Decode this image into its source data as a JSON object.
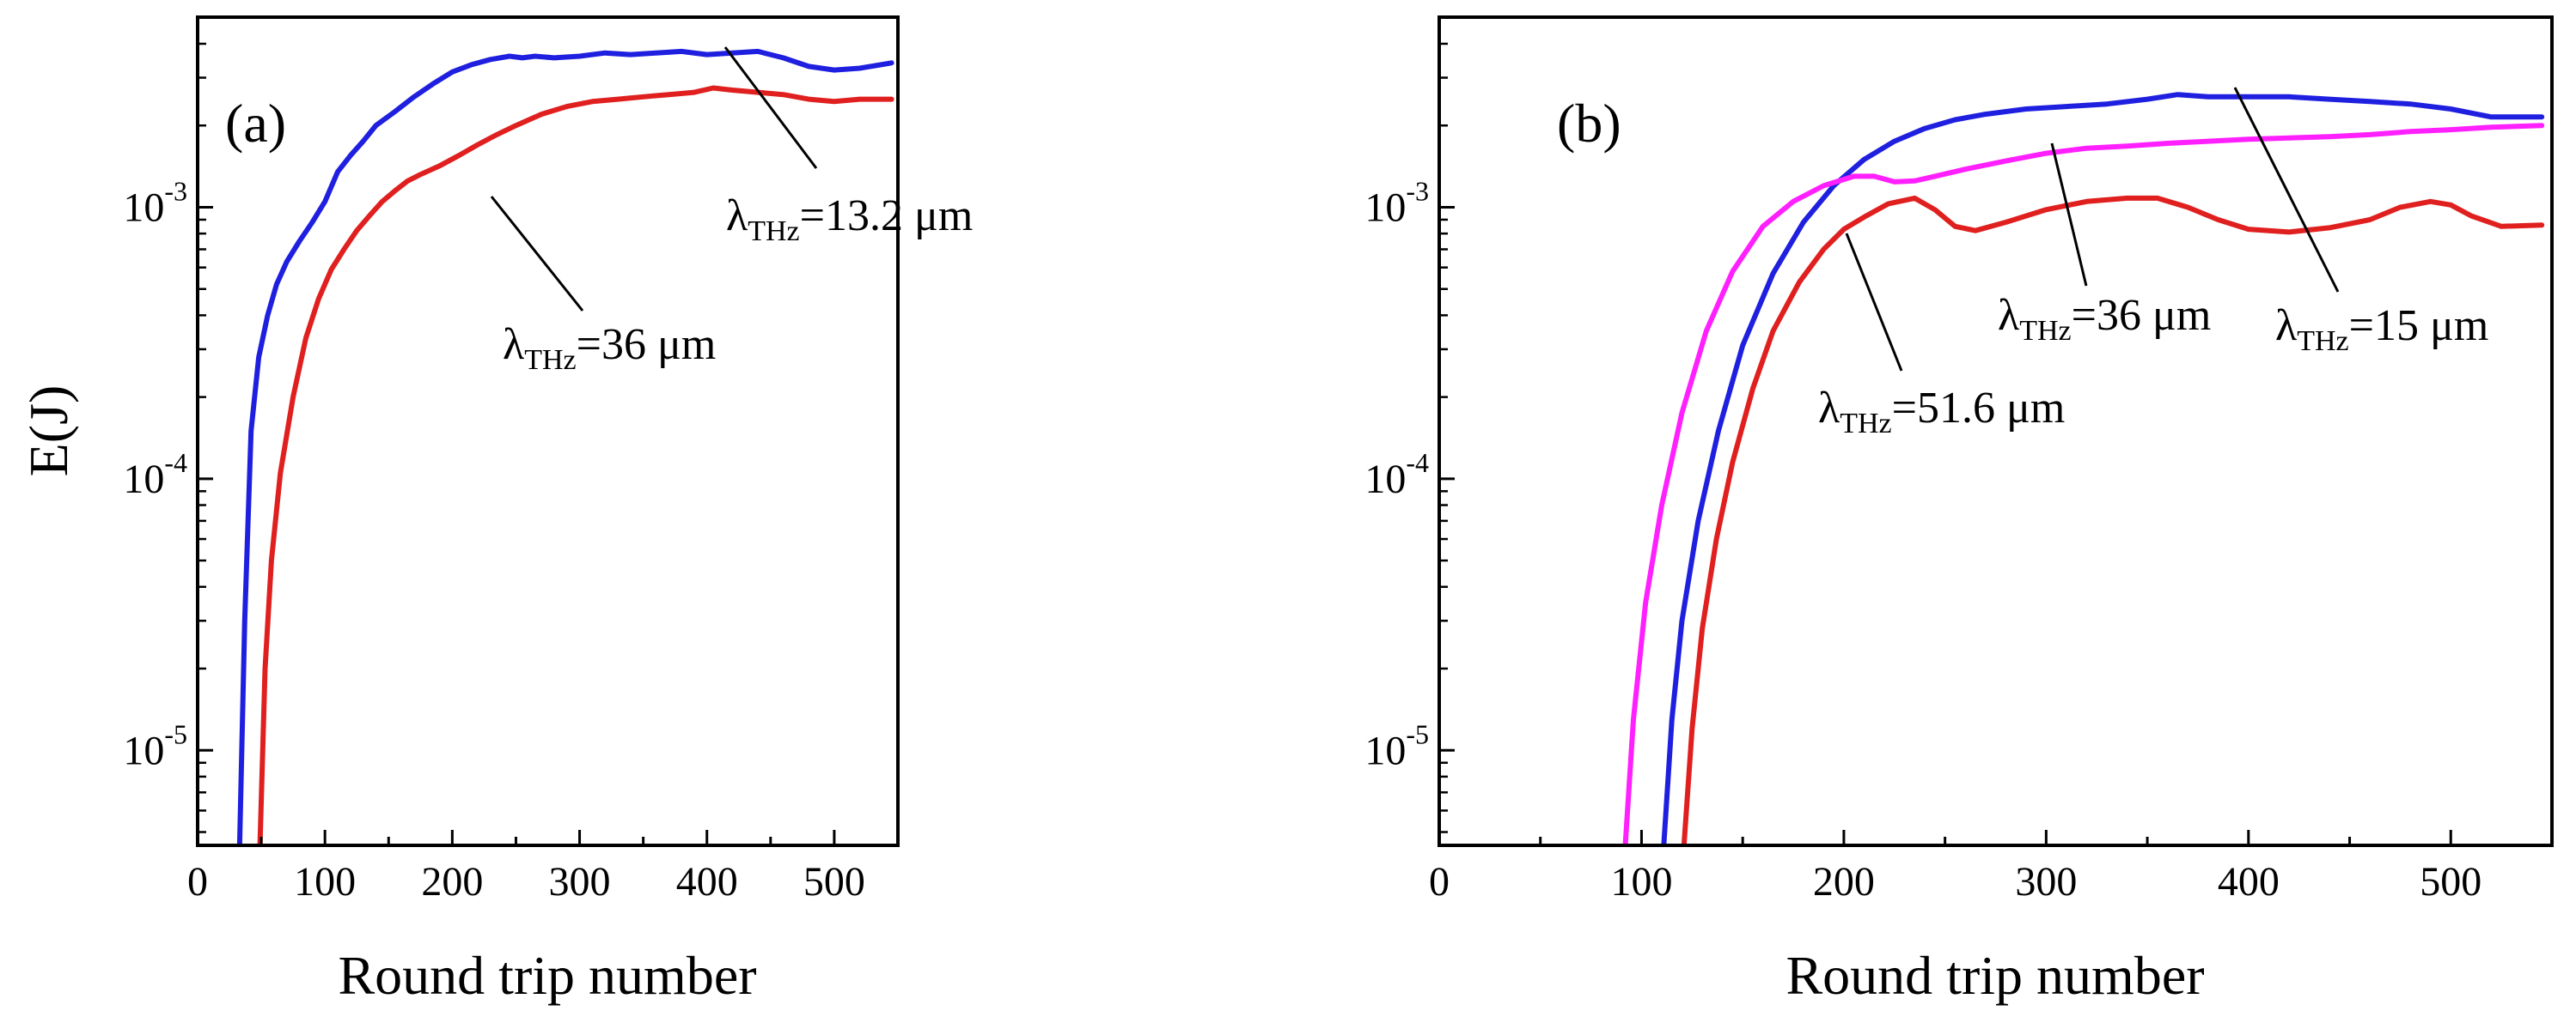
{
  "chart_data": [
    {
      "type": "line",
      "panel_label": "(a)",
      "xlabel": "Round trip number",
      "ylabel": "E(J)",
      "xlim": [
        0,
        550
      ],
      "ylim_log10": [
        -5.35,
        -2.3
      ],
      "x_ticks": [
        "0",
        "100",
        "200",
        "300",
        "400",
        "500"
      ],
      "y_ticks": [
        {
          "base": "10",
          "exp": "-5"
        },
        {
          "base": "10",
          "exp": "-4"
        },
        {
          "base": "10",
          "exp": "-3"
        }
      ],
      "series": [
        {
          "name": "λTHz=13.2 μm",
          "color": "#1f1fe0",
          "points": [
            [
              33,
              4.5e-06
            ],
            [
              37,
              3e-05
            ],
            [
              42,
              0.00015
            ],
            [
              48,
              0.00028
            ],
            [
              55,
              0.0004
            ],
            [
              62,
              0.00052
            ],
            [
              70,
              0.00063
            ],
            [
              80,
              0.00075
            ],
            [
              90,
              0.00088
            ],
            [
              100,
              0.00105
            ],
            [
              110,
              0.00135
            ],
            [
              120,
              0.00155
            ],
            [
              130,
              0.00175
            ],
            [
              140,
              0.002
            ],
            [
              155,
              0.00225
            ],
            [
              170,
              0.00255
            ],
            [
              185,
              0.00285
            ],
            [
              200,
              0.00315
            ],
            [
              215,
              0.00335
            ],
            [
              230,
              0.0035
            ],
            [
              245,
              0.0036
            ],
            [
              255,
              0.00355
            ],
            [
              265,
              0.0036
            ],
            [
              280,
              0.00355
            ],
            [
              300,
              0.0036
            ],
            [
              320,
              0.0037
            ],
            [
              340,
              0.00365
            ],
            [
              360,
              0.0037
            ],
            [
              380,
              0.00375
            ],
            [
              400,
              0.00365
            ],
            [
              420,
              0.0037
            ],
            [
              440,
              0.00375
            ],
            [
              460,
              0.00355
            ],
            [
              480,
              0.0033
            ],
            [
              500,
              0.0032
            ],
            [
              520,
              0.00325
            ],
            [
              545,
              0.0034
            ]
          ]
        },
        {
          "name": "λTHz=36 μm",
          "color": "#e01f1f",
          "points": [
            [
              49,
              4.5e-06
            ],
            [
              53,
              2e-05
            ],
            [
              58,
              5e-05
            ],
            [
              65,
              0.000105
            ],
            [
              75,
              0.0002
            ],
            [
              85,
              0.00033
            ],
            [
              95,
              0.00046
            ],
            [
              105,
              0.00059
            ],
            [
              115,
              0.0007
            ],
            [
              125,
              0.00082
            ],
            [
              135,
              0.00093
            ],
            [
              145,
              0.00105
            ],
            [
              155,
              0.00115
            ],
            [
              165,
              0.00125
            ],
            [
              175,
              0.00132
            ],
            [
              190,
              0.00142
            ],
            [
              205,
              0.00155
            ],
            [
              220,
              0.0017
            ],
            [
              235,
              0.00185
            ],
            [
              250,
              0.002
            ],
            [
              270,
              0.0022
            ],
            [
              290,
              0.00235
            ],
            [
              310,
              0.00245
            ],
            [
              330,
              0.0025
            ],
            [
              350,
              0.00255
            ],
            [
              370,
              0.0026
            ],
            [
              390,
              0.00265
            ],
            [
              405,
              0.00275
            ],
            [
              420,
              0.0027
            ],
            [
              440,
              0.00265
            ],
            [
              460,
              0.0026
            ],
            [
              480,
              0.0025
            ],
            [
              500,
              0.00245
            ],
            [
              520,
              0.0025
            ],
            [
              545,
              0.0025
            ]
          ]
        }
      ],
      "annotations": [
        {
          "base": "λ",
          "sub": "THz",
          "rest": "=13.2 μm",
          "target": "λTHz=13.2 μm"
        },
        {
          "base": "λ",
          "sub": "THz",
          "rest": "=36 μm",
          "target": "λTHz=36 μm"
        }
      ]
    },
    {
      "type": "line",
      "panel_label": "(b)",
      "xlabel": "Round trip number",
      "ylabel": "",
      "xlim": [
        0,
        550
      ],
      "ylim_log10": [
        -5.35,
        -2.3
      ],
      "x_ticks": [
        "0",
        "100",
        "200",
        "300",
        "400",
        "500"
      ],
      "y_ticks": [
        {
          "base": "10",
          "exp": "-5"
        },
        {
          "base": "10",
          "exp": "-4"
        },
        {
          "base": "10",
          "exp": "-3"
        }
      ],
      "series": [
        {
          "name": "λTHz=15 μm",
          "color": "#1f1fe0",
          "points": [
            [
              111,
              4.5e-06
            ],
            [
              115,
              1.3e-05
            ],
            [
              120,
              3e-05
            ],
            [
              128,
              7e-05
            ],
            [
              138,
              0.00015
            ],
            [
              150,
              0.00031
            ],
            [
              165,
              0.00057
            ],
            [
              180,
              0.00088
            ],
            [
              195,
              0.0012
            ],
            [
              210,
              0.0015
            ],
            [
              225,
              0.00175
            ],
            [
              240,
              0.00195
            ],
            [
              255,
              0.0021
            ],
            [
              270,
              0.0022
            ],
            [
              290,
              0.0023
            ],
            [
              310,
              0.00235
            ],
            [
              330,
              0.0024
            ],
            [
              350,
              0.0025
            ],
            [
              365,
              0.0026
            ],
            [
              380,
              0.00255
            ],
            [
              400,
              0.00255
            ],
            [
              420,
              0.00255
            ],
            [
              440,
              0.0025
            ],
            [
              460,
              0.00245
            ],
            [
              480,
              0.0024
            ],
            [
              500,
              0.0023
            ],
            [
              520,
              0.00215
            ],
            [
              545,
              0.00215
            ]
          ]
        },
        {
          "name": "λTHz=36 μm",
          "color": "#ff1fff",
          "points": [
            [
              92,
              4.5e-06
            ],
            [
              96,
              1.3e-05
            ],
            [
              102,
              3.5e-05
            ],
            [
              110,
              8e-05
            ],
            [
              120,
              0.000175
            ],
            [
              132,
              0.00035
            ],
            [
              145,
              0.00058
            ],
            [
              160,
              0.00085
            ],
            [
              175,
              0.00105
            ],
            [
              190,
              0.0012
            ],
            [
              205,
              0.0013
            ],
            [
              215,
              0.0013
            ],
            [
              225,
              0.00124
            ],
            [
              235,
              0.00125
            ],
            [
              245,
              0.0013
            ],
            [
              260,
              0.00138
            ],
            [
              280,
              0.00148
            ],
            [
              300,
              0.00158
            ],
            [
              320,
              0.00165
            ],
            [
              340,
              0.00168
            ],
            [
              360,
              0.00172
            ],
            [
              380,
              0.00175
            ],
            [
              400,
              0.00178
            ],
            [
              420,
              0.0018
            ],
            [
              440,
              0.00182
            ],
            [
              460,
              0.00185
            ],
            [
              480,
              0.0019
            ],
            [
              500,
              0.00193
            ],
            [
              520,
              0.00197
            ],
            [
              545,
              0.002
            ]
          ]
        },
        {
          "name": "λTHz=51.6 μm",
          "color": "#e01f1f",
          "points": [
            [
              121,
              4.5e-06
            ],
            [
              125,
              1.2e-05
            ],
            [
              130,
              2.8e-05
            ],
            [
              137,
              6e-05
            ],
            [
              145,
              0.000115
            ],
            [
              155,
              0.000215
            ],
            [
              165,
              0.00035
            ],
            [
              178,
              0.00053
            ],
            [
              190,
              0.0007
            ],
            [
              200,
              0.00083
            ],
            [
              210,
              0.00092
            ],
            [
              222,
              0.00103
            ],
            [
              235,
              0.00108
            ],
            [
              245,
              0.00098
            ],
            [
              255,
              0.00085
            ],
            [
              265,
              0.00082
            ],
            [
              280,
              0.00088
            ],
            [
              300,
              0.00098
            ],
            [
              320,
              0.00105
            ],
            [
              340,
              0.00108
            ],
            [
              355,
              0.00108
            ],
            [
              370,
              0.001
            ],
            [
              385,
              0.0009
            ],
            [
              400,
              0.00083
            ],
            [
              420,
              0.00081
            ],
            [
              440,
              0.00084
            ],
            [
              460,
              0.0009
            ],
            [
              475,
              0.001
            ],
            [
              490,
              0.00105
            ],
            [
              500,
              0.00102
            ],
            [
              510,
              0.00093
            ],
            [
              525,
              0.00085
            ],
            [
              545,
              0.00086
            ]
          ]
        }
      ],
      "annotations": [
        {
          "base": "λ",
          "sub": "THz",
          "rest": "=36 μm",
          "target": "λTHz=36 μm"
        },
        {
          "base": "λ",
          "sub": "THz",
          "rest": "=15 μm",
          "target": "λTHz=15 μm"
        },
        {
          "base": "λ",
          "sub": "THz",
          "rest": "=51.6 μm",
          "target": "λTHz=51.6 μm"
        }
      ]
    }
  ]
}
